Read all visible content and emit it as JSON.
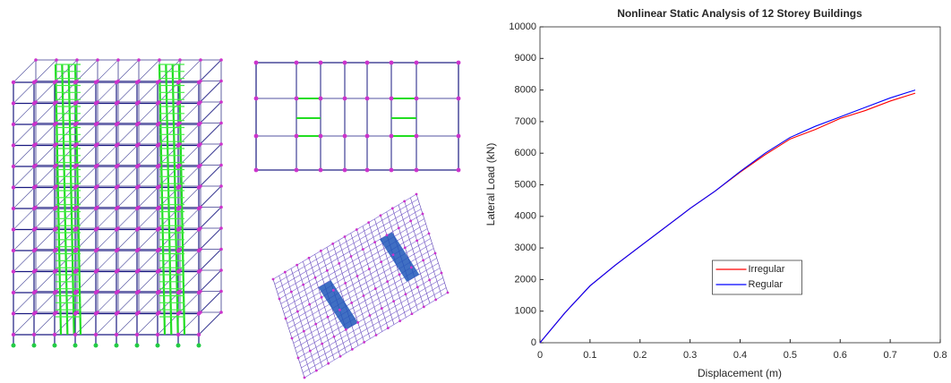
{
  "chart_data": {
    "type": "line",
    "title": "Nonlinear Static Analysis of 12 Storey Buildings",
    "x_label": "Displacement (m)",
    "y_label": "Lateral Load (kN)",
    "x": [
      0,
      0.05,
      0.1,
      0.15,
      0.2,
      0.25,
      0.3,
      0.35,
      0.4,
      0.45,
      0.5,
      0.55,
      0.6,
      0.65,
      0.7,
      0.75
    ],
    "series": [
      {
        "name": "Irregular",
        "color": "#ff0000",
        "values": [
          0,
          950,
          1800,
          2450,
          3050,
          3650,
          4250,
          4800,
          5400,
          5950,
          6450,
          6750,
          7100,
          7350,
          7650,
          7900
        ]
      },
      {
        "name": "Regular",
        "color": "#0000ff",
        "values": [
          0,
          950,
          1800,
          2450,
          3050,
          3650,
          4250,
          4800,
          5420,
          6000,
          6500,
          6850,
          7150,
          7450,
          7750,
          8000
        ]
      }
    ],
    "xlim": [
      0,
      0.8
    ],
    "xticks": [
      0,
      0.1,
      0.2,
      0.3,
      0.4,
      0.5,
      0.6,
      0.7,
      0.8
    ],
    "ylim": [
      0,
      10000
    ],
    "yticks": [
      0,
      1000,
      2000,
      3000,
      4000,
      5000,
      6000,
      7000,
      8000,
      9000,
      10000
    ],
    "grid": false,
    "legend": "lower center"
  }
}
